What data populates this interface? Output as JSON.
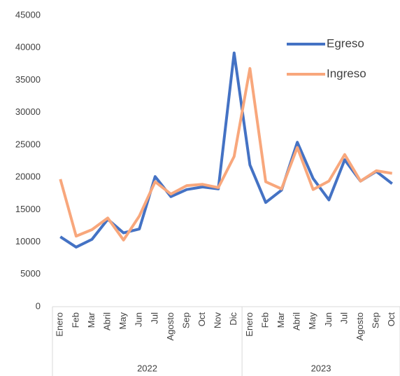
{
  "chart_data": {
    "type": "line",
    "category_groups": [
      {
        "label": "2022",
        "categories": [
          "Enero",
          "Feb",
          "Mar",
          "Abril",
          "May",
          "Jun",
          "Jul",
          "Agosto",
          "Sep",
          "Oct",
          "Nov",
          "Dic"
        ]
      },
      {
        "label": "2023",
        "categories": [
          "Enero",
          "Feb",
          "Mar",
          "Abril",
          "May",
          "Jun",
          "Jul",
          "Agosto",
          "Sep",
          "Oct"
        ]
      }
    ],
    "series": [
      {
        "name": "Egreso",
        "color": "#4472c4",
        "values": [
          10800,
          9200,
          10400,
          13500,
          11400,
          12000,
          20100,
          17000,
          18100,
          18500,
          18200,
          39200,
          21900,
          16100,
          18000,
          25400,
          19800,
          16500,
          22700,
          19400,
          20900,
          19000
        ]
      },
      {
        "name": "Ingreso",
        "color": "#f8a77c",
        "values": [
          19700,
          10900,
          11900,
          13700,
          10300,
          14000,
          19300,
          17400,
          18700,
          18900,
          18400,
          23200,
          36800,
          19300,
          18200,
          24600,
          18100,
          19400,
          23500,
          19400,
          21000,
          20600
        ]
      }
    ],
    "ylim": [
      0,
      45000
    ],
    "yticks": [
      0,
      5000,
      10000,
      15000,
      20000,
      25000,
      30000,
      35000,
      40000,
      45000
    ],
    "legend": "upper right"
  }
}
